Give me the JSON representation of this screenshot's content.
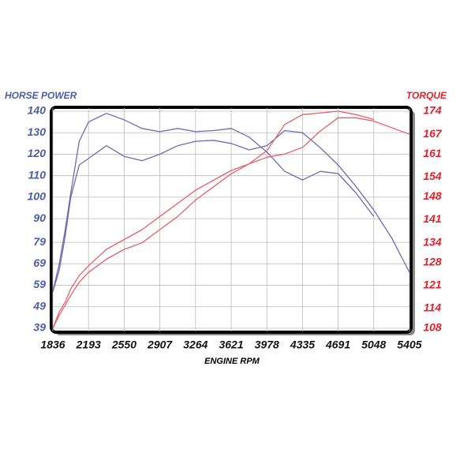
{
  "chart_data": {
    "type": "line",
    "y_label": "HORSE POWER",
    "y2_label": "TORQUE",
    "x_label": "ENGINE RPM",
    "x": [
      1836,
      1900,
      1960,
      2015,
      2100,
      2193,
      2372,
      2550,
      2729,
      2907,
      3086,
      3264,
      3443,
      3621,
      3800,
      3978,
      4157,
      4335,
      4513,
      4691,
      4870,
      5048,
      5227,
      5405
    ],
    "series": [
      {
        "color": "#6a6cb4",
        "values": [
          56,
          69,
          85,
          102,
          126,
          135,
          139,
          136,
          132,
          130.5,
          132,
          130.5,
          131,
          132,
          128,
          121,
          112,
          108,
          112,
          111,
          102,
          91,
          null,
          null
        ]
      },
      {
        "color": "#6a6cb4",
        "values": [
          56,
          66,
          82,
          100,
          115,
          118,
          124,
          119,
          117,
          120,
          124,
          126,
          126.5,
          125,
          122,
          124,
          131,
          130,
          123,
          115,
          105,
          94,
          81,
          65
        ]
      },
      {
        "color": "#e8606c",
        "axis": "y2",
        "values": [
          108,
          113,
          116,
          120,
          124,
          127,
          132,
          135,
          138,
          142,
          146,
          150,
          153,
          156,
          158,
          162,
          170,
          173,
          173.5,
          174,
          173,
          171.5,
          null,
          null
        ]
      },
      {
        "color": "#e8606c",
        "axis": "y2",
        "values": [
          108,
          112,
          115,
          118,
          122,
          125,
          129,
          132,
          134,
          138,
          142,
          147,
          151,
          155,
          158,
          160,
          161,
          163,
          168,
          172,
          172,
          171,
          169,
          167
        ]
      }
    ],
    "xlim": [
      1836,
      5405
    ],
    "xticks": [
      1836,
      2193,
      2550,
      2907,
      3264,
      3621,
      3978,
      4335,
      4691,
      5048,
      5405
    ],
    "ylim": [
      39,
      140
    ],
    "yticks": [
      140,
      130,
      120,
      110,
      100,
      90,
      79,
      69,
      59,
      49,
      39
    ],
    "y2lim": [
      108,
      174
    ],
    "y2ticks": [
      174,
      167,
      161,
      154,
      148,
      141,
      134,
      128,
      121,
      114,
      108
    ],
    "grid": true,
    "y_color": "#4a5ea6",
    "y2_color": "#e4202c"
  }
}
